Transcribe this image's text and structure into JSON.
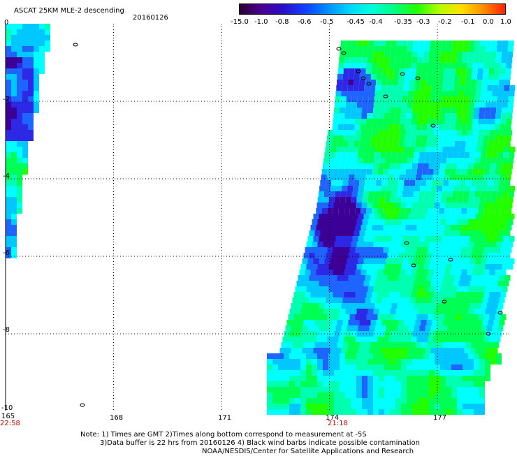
{
  "header": {
    "title": "ASCAT 25KM MLE-2 descending",
    "date": "20160126"
  },
  "colorbar": {
    "labels": [
      "-15.0",
      "-1.0",
      "-0.8",
      "-0.6",
      "-0.5",
      "-0.45",
      "-0.4",
      "-0.35",
      "-0.3",
      "-0.2",
      "-0.1",
      "0.0",
      "1.0"
    ],
    "colors": [
      "#2b0030",
      "#4b0090",
      "#2a10c8",
      "#1040ff",
      "#0090ff",
      "#00d8ff",
      "#00ffd8",
      "#00ff80",
      "#20ff00",
      "#b0ff00",
      "#ffe000",
      "#ff9000",
      "#ff2000"
    ]
  },
  "axes": {
    "y_ticks": [
      "0",
      "-2",
      "-4",
      "-6",
      "-8",
      "-10"
    ],
    "x_ticks": [
      "165",
      "168",
      "171",
      "174",
      "177"
    ],
    "time_labels": [
      "22:58",
      "21:18"
    ]
  },
  "notes": [
    "Note: 1) Times are GMT 2)Times along bottom correspond to measurement at -5S",
    "3)Data buffer is 22 hrs from 20160126 4) Black wind barbs indicate possible contamination",
    "NOAA/NESDIS/Center for Satellite Applications and Research"
  ],
  "palette": {
    "lime": "#22ff00",
    "green": "#00ff55",
    "teal": "#00ffb0",
    "cyan": "#00ffff",
    "sky": "#00c8ff",
    "blue": "#1e64ff",
    "deep-blue": "#2d28e6",
    "purple": "#3c0096",
    "grid": "#000000"
  }
}
